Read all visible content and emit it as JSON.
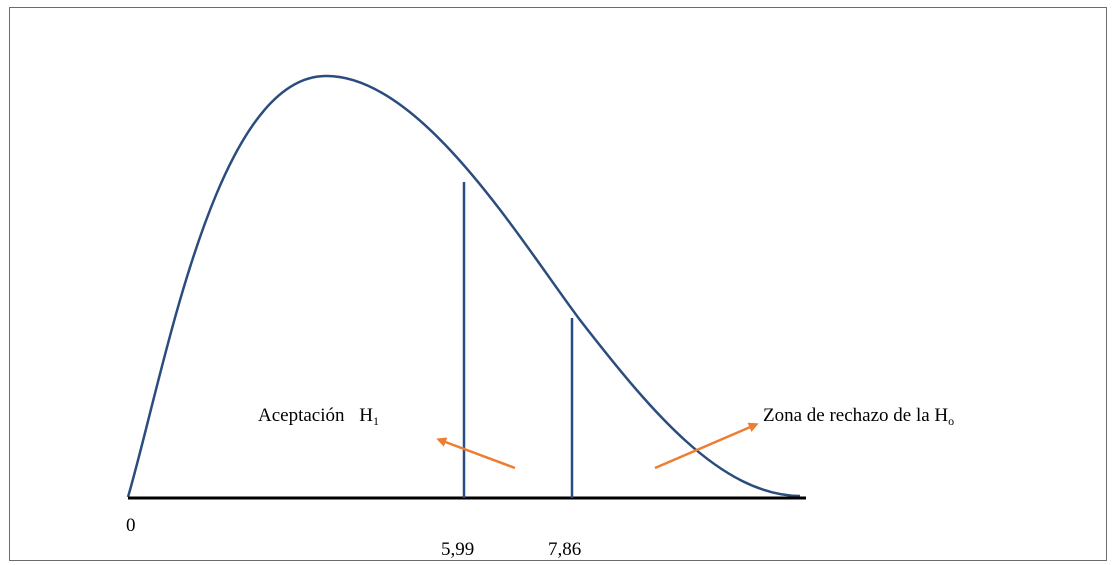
{
  "diagram": {
    "origin_label": "0",
    "tick_labels": [
      "5,99",
      "7,86"
    ],
    "acceptance_label": "Aceptación",
    "acceptance_hyp": "H",
    "acceptance_sub": "1",
    "rejection_label": "Zona de rechazo de la H",
    "rejection_sub": "o",
    "colors": {
      "curve": "#2b4c7e",
      "critical_lines": "#2b4c7e",
      "arrows": "#ed7d31",
      "axis": "#000000",
      "frame": "#6b6b6b"
    }
  }
}
